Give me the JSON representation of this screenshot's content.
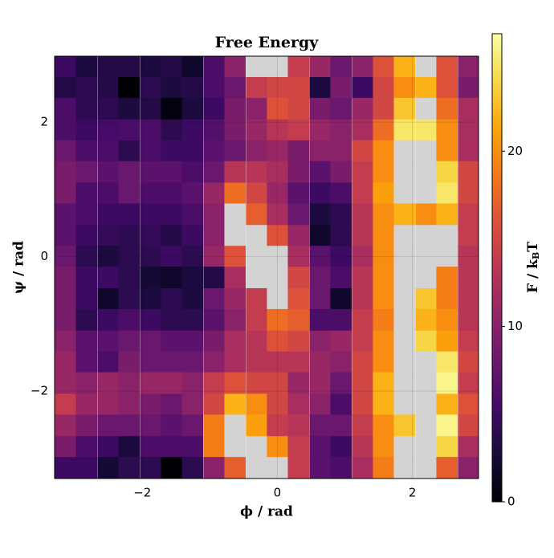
{
  "chart_data": {
    "type": "heatmap",
    "title": "Free Energy",
    "x_label": "ϕ / rad",
    "y_label": "ψ / rad",
    "colorbar_label": [
      "F / k",
      "B",
      "T"
    ],
    "x": [
      -3.14,
      -2.83,
      -2.51,
      -2.2,
      -1.88,
      -1.57,
      -1.26,
      -0.94,
      -0.63,
      -0.31,
      0,
      0.31,
      0.63,
      0.94,
      1.26,
      1.57,
      1.88,
      2.2,
      2.51,
      2.83
    ],
    "y": [
      2.83,
      2.51,
      2.2,
      1.88,
      1.57,
      1.26,
      0.94,
      0.63,
      0.31,
      0,
      -0.31,
      -0.63,
      -0.94,
      -1.26,
      -1.57,
      -1.88,
      -2.2,
      -2.51,
      -2.83,
      -3.14
    ],
    "z": [
      [
        5,
        3,
        3.5,
        3.5,
        3,
        3.5,
        2,
        6,
        10,
        null,
        null,
        14,
        11,
        8,
        10,
        16,
        22,
        null,
        16,
        10
      ],
      [
        3.5,
        4,
        3.5,
        0,
        4,
        3,
        3.5,
        6,
        8,
        14,
        15,
        15,
        3,
        9,
        5,
        15,
        20,
        22,
        16,
        9
      ],
      [
        6,
        4,
        4,
        3,
        3.5,
        0.5,
        3,
        5,
        9,
        10,
        16,
        15,
        9,
        8,
        11,
        15,
        23,
        null,
        18,
        12
      ],
      [
        6,
        5,
        5.5,
        6,
        6,
        4,
        5,
        6.5,
        9,
        11,
        13,
        14,
        11,
        10,
        12,
        18,
        25,
        25,
        20,
        12
      ],
      [
        8,
        6,
        6,
        4,
        6,
        5,
        5,
        7,
        8,
        10,
        11,
        9,
        10,
        10,
        15,
        20,
        null,
        null,
        20,
        12
      ],
      [
        9,
        8,
        7,
        8,
        7,
        7,
        6,
        8,
        13,
        13,
        12,
        9,
        7,
        9,
        14,
        20,
        null,
        null,
        24,
        15
      ],
      [
        9,
        6,
        6,
        8,
        6,
        6,
        7,
        11,
        18,
        15,
        11,
        7,
        5,
        6,
        14,
        21,
        null,
        null,
        25,
        15
      ],
      [
        7,
        6,
        5,
        5,
        5,
        5,
        6,
        10,
        null,
        17,
        12,
        8,
        3,
        4,
        13,
        20,
        22,
        20,
        22,
        14
      ],
      [
        7,
        5,
        4.5,
        4,
        4.5,
        3.5,
        5,
        10,
        null,
        null,
        16,
        11,
        2,
        4,
        13,
        20,
        null,
        null,
        null,
        14
      ],
      [
        8,
        4,
        3,
        4,
        4,
        5,
        4,
        11,
        16,
        null,
        null,
        12,
        7,
        5,
        12,
        20,
        null,
        null,
        null,
        13
      ],
      [
        9,
        5,
        5,
        4,
        2.5,
        2,
        3,
        3.5,
        12,
        null,
        null,
        15,
        8,
        6,
        13,
        20,
        null,
        null,
        19,
        13
      ],
      [
        9,
        5,
        2,
        4,
        3,
        4,
        3,
        8,
        11,
        14,
        null,
        16,
        8,
        2,
        13,
        20,
        null,
        23,
        19,
        13
      ],
      [
        9,
        4,
        5,
        6,
        5,
        4,
        4,
        7,
        10,
        14,
        18,
        17,
        6,
        6,
        14,
        19,
        null,
        22,
        20,
        13
      ],
      [
        10,
        7,
        7,
        8,
        8,
        7,
        7,
        9,
        12,
        13,
        16,
        15,
        10,
        11,
        14,
        20,
        null,
        24,
        21,
        14
      ],
      [
        11,
        7,
        6,
        9,
        8,
        8,
        8,
        10,
        12,
        13,
        13,
        13,
        11,
        10,
        15,
        20,
        null,
        null,
        25,
        15
      ],
      [
        11,
        10,
        11,
        10,
        11,
        11,
        10,
        14,
        16,
        15,
        15,
        11,
        11,
        8,
        15,
        22,
        null,
        null,
        26,
        14
      ],
      [
        14,
        11,
        11,
        10,
        9,
        8,
        10,
        15,
        22,
        20,
        15,
        12,
        10,
        6,
        15,
        22,
        null,
        null,
        22,
        16
      ],
      [
        11,
        9,
        8,
        8,
        8,
        7,
        8,
        19,
        null,
        21,
        14,
        13,
        8,
        8,
        14,
        20,
        23,
        null,
        26,
        15
      ],
      [
        9,
        6,
        5,
        3,
        6,
        6,
        6,
        19,
        null,
        null,
        20,
        14,
        7,
        5,
        13,
        20,
        null,
        null,
        24,
        12
      ],
      [
        5,
        5,
        2.5,
        4,
        4,
        0,
        4,
        10,
        17,
        null,
        null,
        14,
        7,
        6,
        12,
        19,
        null,
        null,
        17,
        10
      ]
    ],
    "xlim": [
      -3.3,
      2.98
    ],
    "ylim": [
      -3.3,
      2.98
    ],
    "xticks": [
      {
        "value": -2,
        "label": "−2"
      },
      0,
      2
    ],
    "yticks": [
      {
        "value": -2,
        "label": "−2"
      },
      0,
      2
    ],
    "clim": [
      0,
      26.7
    ],
    "cticks": [
      0,
      10,
      20
    ],
    "colormap": "inferno",
    "missing_color": "#d3d3d3",
    "grid": true
  }
}
